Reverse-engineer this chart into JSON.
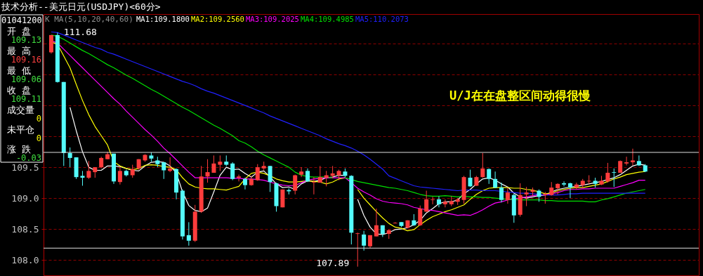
{
  "chart_data": {
    "type": "candlestick",
    "title": "技术分析--美元日元(USDJPY)<60分>",
    "subtitle": "K   MA(5,10,20,40,60)",
    "categories": [
      null,
      null,
      null,
      null,
      null,
      null,
      null,
      null,
      null,
      null,
      null,
      null,
      null,
      null,
      null,
      null,
      null,
      null,
      null,
      null,
      null,
      null,
      null,
      null,
      null,
      null,
      null,
      null,
      null,
      null,
      null,
      null,
      null,
      null,
      null,
      null,
      null,
      null,
      null,
      null,
      null,
      null,
      null,
      null,
      null,
      null,
      null,
      null,
      null,
      null,
      null,
      null,
      null,
      null,
      null,
      null,
      null,
      null,
      null,
      null,
      null,
      null,
      null,
      null,
      null,
      null,
      null,
      null,
      null,
      null,
      null,
      null,
      null,
      null,
      null,
      null,
      null,
      null,
      null,
      null,
      null,
      null,
      null,
      null,
      null,
      null,
      null,
      null,
      null,
      null,
      null,
      null,
      null,
      null,
      null,
      null
    ],
    "ohlc": [
      [
        111.36,
        111.64,
        111.34,
        111.64
      ],
      [
        111.64,
        111.68,
        110.87,
        110.88
      ],
      [
        110.88,
        110.88,
        109.52,
        109.73
      ],
      [
        109.73,
        109.82,
        109.5,
        109.65
      ],
      [
        109.66,
        109.66,
        109.31,
        109.34
      ],
      [
        109.36,
        109.44,
        109.2,
        109.33
      ],
      [
        109.33,
        109.6,
        109.31,
        109.44
      ],
      [
        109.42,
        109.5,
        109.33,
        109.5
      ],
      [
        109.5,
        109.67,
        109.48,
        109.65
      ],
      [
        109.63,
        109.75,
        109.63,
        109.71
      ],
      [
        109.72,
        109.72,
        109.23,
        109.27
      ],
      [
        109.26,
        109.5,
        109.22,
        109.44
      ],
      [
        109.44,
        109.46,
        109.35,
        109.37
      ],
      [
        109.37,
        109.54,
        109.33,
        109.47
      ],
      [
        109.48,
        109.63,
        109.46,
        109.63
      ],
      [
        109.61,
        109.71,
        109.59,
        109.7
      ],
      [
        109.69,
        109.74,
        109.59,
        109.64
      ],
      [
        109.61,
        109.67,
        109.5,
        109.55
      ],
      [
        109.58,
        109.58,
        109.31,
        109.45
      ],
      [
        109.44,
        109.66,
        109.42,
        109.48
      ],
      [
        109.47,
        109.48,
        108.98,
        109.09
      ],
      [
        109.12,
        109.14,
        108.33,
        108.38
      ],
      [
        108.4,
        108.61,
        108.23,
        108.31
      ],
      [
        108.31,
        108.89,
        108.29,
        108.78
      ],
      [
        108.78,
        109.52,
        108.76,
        109.35
      ],
      [
        109.35,
        109.63,
        109.25,
        109.42
      ],
      [
        109.41,
        109.69,
        109.41,
        109.56
      ],
      [
        109.54,
        109.69,
        109.44,
        109.59
      ],
      [
        109.59,
        109.69,
        109.52,
        109.54
      ],
      [
        109.56,
        109.58,
        109.29,
        109.31
      ],
      [
        109.33,
        109.38,
        109.27,
        109.35
      ],
      [
        109.31,
        109.33,
        109.14,
        109.21
      ],
      [
        109.21,
        109.36,
        109.2,
        109.31
      ],
      [
        109.29,
        109.55,
        109.28,
        109.5
      ],
      [
        109.48,
        109.59,
        109.45,
        109.52
      ],
      [
        109.52,
        109.52,
        109.1,
        109.26
      ],
      [
        109.24,
        109.25,
        108.78,
        108.87
      ],
      [
        108.85,
        109.14,
        108.85,
        109.14
      ],
      [
        109.13,
        109.16,
        109.06,
        109.11
      ],
      [
        109.12,
        109.38,
        109.06,
        109.37
      ],
      [
        109.38,
        109.5,
        109.34,
        109.43
      ],
      [
        109.44,
        109.48,
        109.26,
        109.27
      ],
      [
        109.25,
        109.34,
        109.06,
        109.26
      ],
      [
        109.25,
        109.52,
        109.25,
        109.34
      ],
      [
        109.33,
        109.44,
        109.19,
        109.37
      ],
      [
        109.36,
        109.52,
        109.32,
        109.4
      ],
      [
        109.37,
        109.46,
        109.29,
        109.44
      ],
      [
        109.43,
        109.48,
        109.34,
        109.36
      ],
      [
        109.36,
        109.37,
        108.25,
        108.44
      ],
      [
        108.42,
        108.44,
        107.89,
        108.43
      ],
      [
        108.41,
        108.47,
        108.15,
        108.23
      ],
      [
        108.22,
        108.4,
        108.19,
        108.4
      ],
      [
        108.38,
        108.83,
        108.38,
        108.56
      ],
      [
        108.56,
        108.56,
        108.37,
        108.42
      ],
      [
        108.42,
        108.49,
        108.34,
        108.48
      ],
      [
        108.59,
        108.61,
        108.59,
        108.6
      ],
      [
        108.61,
        108.61,
        108.53,
        108.55
      ],
      [
        108.52,
        108.64,
        108.51,
        108.64
      ],
      [
        108.64,
        108.74,
        108.55,
        108.56
      ],
      [
        108.56,
        108.88,
        108.55,
        108.83
      ],
      [
        108.78,
        109.12,
        108.78,
        108.98
      ],
      [
        108.97,
        109.02,
        108.9,
        108.98
      ],
      [
        108.98,
        109.03,
        108.85,
        108.9
      ],
      [
        108.9,
        108.98,
        108.85,
        108.94
      ],
      [
        108.9,
        109.03,
        108.87,
        108.95
      ],
      [
        108.94,
        109.0,
        108.89,
        108.98
      ],
      [
        108.97,
        109.36,
        108.91,
        109.34
      ],
      [
        109.33,
        109.46,
        109.18,
        109.19
      ],
      [
        109.2,
        109.36,
        109.2,
        109.34
      ],
      [
        109.34,
        109.73,
        109.33,
        109.48
      ],
      [
        109.47,
        109.48,
        109.23,
        109.31
      ],
      [
        109.31,
        109.43,
        109.16,
        109.17
      ],
      [
        109.17,
        109.25,
        108.93,
        108.97
      ],
      [
        108.97,
        109.17,
        108.91,
        109.09
      ],
      [
        109.05,
        109.07,
        108.6,
        108.72
      ],
      [
        108.73,
        109.24,
        108.7,
        109.05
      ],
      [
        109.06,
        109.18,
        108.87,
        109.09
      ],
      [
        109.1,
        109.17,
        109.04,
        109.13
      ],
      [
        109.12,
        109.14,
        108.94,
        109.02
      ],
      [
        109.05,
        109.1,
        108.91,
        109.07
      ],
      [
        109.05,
        109.26,
        109.04,
        109.17
      ],
      [
        109.16,
        109.24,
        109.06,
        109.23
      ],
      [
        109.24,
        109.27,
        109.19,
        109.22
      ],
      [
        109.24,
        109.25,
        109.0,
        109.17
      ],
      [
        109.17,
        109.25,
        109.14,
        109.22
      ],
      [
        109.21,
        109.31,
        109.16,
        109.28
      ],
      [
        109.27,
        109.37,
        109.23,
        109.28
      ],
      [
        109.28,
        109.33,
        109.17,
        109.23
      ],
      [
        109.22,
        109.36,
        109.21,
        109.28
      ],
      [
        109.27,
        109.57,
        109.25,
        109.41
      ],
      [
        109.42,
        109.48,
        109.18,
        109.41
      ],
      [
        109.41,
        109.61,
        109.41,
        109.6
      ],
      [
        109.56,
        109.67,
        109.53,
        109.58
      ],
      [
        109.58,
        109.8,
        109.53,
        109.61
      ],
      [
        109.6,
        109.69,
        109.52,
        109.53
      ],
      [
        109.53,
        109.55,
        109.42,
        109.43
      ]
    ],
    "colors": [
      "#ff3c3c",
      "#54fcfc",
      "#54fcfc",
      "#54fcfc",
      "#54fcfc",
      "#54fcfc",
      "#ff3c3c",
      "#ff3c3c",
      "#ff3c3c",
      "#ff3c3c",
      "#54fcfc",
      "#ff3c3c",
      "#54fcfc",
      "#ff3c3c",
      "#ff3c3c",
      "#ff3c3c",
      "#54fcfc",
      "#54fcfc",
      "#54fcfc",
      "#ff3c3c",
      "#54fcfc",
      "#54fcfc",
      "#54fcfc",
      "#ff3c3c",
      "#ff3c3c",
      "#ff3c3c",
      "#ff3c3c",
      "#ff3c3c",
      "#54fcfc",
      "#54fcfc",
      "#ff3c3c",
      "#54fcfc",
      "#ff3c3c",
      "#ff3c3c",
      "#ff3c3c",
      "#54fcfc",
      "#54fcfc",
      "#ff3c3c",
      "#54fcfc",
      "#ff3c3c",
      "#ff3c3c",
      "#54fcfc",
      "#ff3c3c",
      "#ff3c3c",
      "#ff3c3c",
      "#ff3c3c",
      "#ff3c3c",
      "#54fcfc",
      "#54fcfc",
      "#ff3c3c",
      "#54fcfc",
      "#ff3c3c",
      "#ff3c3c",
      "#54fcfc",
      "#ff3c3c",
      "#ff3c3c",
      "#54fcfc",
      "#ff3c3c",
      "#54fcfc",
      "#ff3c3c",
      "#ff3c3c",
      "#ff3c3c",
      "#54fcfc",
      "#ff3c3c",
      "#ff3c3c",
      "#ff3c3c",
      "#ff3c3c",
      "#54fcfc",
      "#ff3c3c",
      "#ff3c3c",
      "#54fcfc",
      "#54fcfc",
      "#54fcfc",
      "#ff3c3c",
      "#54fcfc",
      "#ff3c3c",
      "#ff3c3c",
      "#ff3c3c",
      "#54fcfc",
      "#ff3c3c",
      "#ff3c3c",
      "#ff3c3c",
      "#54fcfc",
      "#54fcfc",
      "#ff3c3c",
      "#ff3c3c",
      "#ff3c3c",
      "#54fcfc",
      "#ff3c3c",
      "#ff3c3c",
      "#54fcfc",
      "#ff3c3c",
      "#ff3c3c",
      "#ff3c3c",
      "#54fcfc",
      "#54fcfc"
    ],
    "series": [
      {
        "type": "line",
        "name": "MA1:109.1800",
        "color": "#ffffff",
        "values": [
          null,
          null,
          null,
          110.47,
          110.09,
          109.75,
          109.5,
          109.45,
          109.45,
          109.52,
          109.52,
          109.51,
          109.48,
          109.45,
          109.44,
          109.52,
          109.58,
          109.59,
          109.58,
          109.52,
          109.41,
          109.1,
          108.88,
          108.8,
          108.78,
          108.84,
          109.1,
          109.37,
          109.5,
          109.46,
          109.47,
          109.4,
          109.34,
          109.42,
          109.44,
          109.34,
          109.23,
          109.17,
          109.18,
          109.14,
          109.23,
          109.28,
          109.27,
          109.29,
          109.33,
          109.34,
          109.37,
          109.37,
          null,
          108.98,
          108.72,
          108.53,
          108.42,
          108.41,
          108.44,
          108.49,
          108.5,
          108.52,
          108.57,
          108.64,
          108.76,
          108.83,
          108.91,
          108.94,
          108.94,
          108.97,
          109.07,
          109.14,
          109.23,
          109.31,
          109.33,
          109.29,
          109.23,
          109.18,
          109.08,
          109.02,
          109.0,
          109.02,
          109.04,
          109.05,
          109.1,
          109.14,
          109.16,
          109.18,
          109.19,
          109.21,
          109.23,
          109.25,
          109.27,
          109.3,
          109.33,
          109.38,
          109.45,
          109.52,
          109.55,
          109.53
        ]
      },
      {
        "type": "line",
        "name": "MA2:109.2560",
        "color": "#ffff00",
        "values": [
          111.53,
          111.49,
          111.3,
          111.11,
          110.84,
          110.58,
          110.35,
          110.16,
          110.01,
          109.86,
          109.59,
          109.52,
          109.48,
          109.46,
          109.48,
          109.53,
          109.54,
          109.53,
          109.51,
          109.5,
          109.46,
          109.33,
          109.23,
          109.18,
          109.16,
          109.15,
          109.15,
          109.14,
          109.13,
          109.16,
          109.19,
          109.31,
          109.4,
          109.42,
          109.4,
          109.36,
          109.31,
          109.28,
          109.26,
          109.26,
          109.27,
          109.28,
          109.27,
          109.26,
          109.23,
          109.26,
          109.31,
          109.33,
          null,
          109.14,
          109.0,
          108.89,
          108.78,
          108.68,
          108.59,
          108.53,
          108.51,
          108.47,
          108.49,
          108.57,
          108.64,
          108.7,
          108.74,
          108.78,
          108.81,
          108.85,
          108.89,
          108.98,
          109.06,
          109.12,
          109.16,
          109.17,
          109.17,
          109.17,
          109.16,
          109.16,
          109.14,
          109.13,
          109.1,
          109.07,
          109.08,
          109.12,
          109.14,
          109.16,
          109.17,
          109.17,
          109.19,
          109.21,
          109.23,
          109.27,
          109.31,
          109.34,
          109.38,
          109.4,
          109.42,
          109.43
        ]
      },
      {
        "type": "line",
        "name": "MA3:109.2025",
        "color": "#ff00ff",
        "values": [
          111.55,
          111.51,
          111.41,
          111.31,
          111.21,
          111.11,
          111.01,
          110.91,
          110.81,
          110.71,
          110.61,
          110.52,
          110.41,
          110.31,
          110.21,
          110.11,
          110.02,
          109.92,
          109.81,
          109.72,
          109.62,
          109.52,
          109.42,
          109.33,
          109.33,
          109.33,
          109.33,
          109.33,
          109.33,
          109.32,
          109.32,
          109.31,
          109.31,
          109.3,
          109.29,
          109.26,
          109.23,
          109.21,
          109.2,
          109.2,
          109.25,
          109.29,
          109.31,
          109.32,
          109.33,
          109.33,
          109.33,
          109.33,
          109.25,
          109.16,
          109.1,
          109.05,
          108.99,
          108.95,
          108.93,
          108.92,
          108.91,
          108.89,
          108.85,
          108.83,
          108.81,
          108.8,
          108.78,
          108.76,
          108.74,
          108.72,
          108.73,
          108.72,
          108.76,
          108.81,
          108.87,
          108.92,
          108.94,
          108.97,
          108.99,
          109.0,
          109.02,
          109.04,
          109.05,
          109.05,
          109.07,
          109.09,
          109.12,
          109.14,
          109.14,
          109.15,
          109.15,
          109.16,
          109.16,
          109.16,
          109.16,
          109.19,
          109.22,
          109.25,
          109.29,
          109.29
        ]
      },
      {
        "type": "line",
        "name": "MA4:109.4985",
        "color": "#00e000",
        "values": [
          111.64,
          111.62,
          111.57,
          111.51,
          111.45,
          111.39,
          111.34,
          111.28,
          111.22,
          111.16,
          111.11,
          111.05,
          110.99,
          110.94,
          110.88,
          110.82,
          110.76,
          110.71,
          110.65,
          110.59,
          110.53,
          110.47,
          110.42,
          110.36,
          110.3,
          110.24,
          110.18,
          110.13,
          110.07,
          110.01,
          109.93,
          109.89,
          109.83,
          109.76,
          109.7,
          109.65,
          109.6,
          109.55,
          109.5,
          109.42,
          109.37,
          109.35,
          109.34,
          109.34,
          109.34,
          109.33,
          null,
          109.33,
          109.3,
          109.27,
          109.25,
          109.23,
          109.21,
          109.19,
          109.17,
          109.16,
          109.14,
          109.12,
          109.09,
          109.06,
          109.04,
          109.03,
          109.03,
          109.04,
          109.03,
          109.02,
          109.03,
          109.02,
          109.02,
          109.01,
          109.01,
          109.0,
          108.99,
          108.98,
          108.98,
          108.97,
          108.97,
          108.97,
          108.97,
          108.96,
          108.96,
          108.95,
          108.95,
          108.95,
          108.95,
          108.95,
          108.94,
          108.94,
          108.97,
          108.99,
          109.02,
          109.05,
          109.08,
          109.1,
          109.12,
          109.14
        ]
      },
      {
        "type": "line",
        "name": "MA5:110.2073",
        "color": "#2020ff",
        "values": [
          111.69,
          111.68,
          111.64,
          111.6,
          111.56,
          111.52,
          111.48,
          111.44,
          111.41,
          111.36,
          111.33,
          111.29,
          111.25,
          111.21,
          111.17,
          111.13,
          111.09,
          111.05,
          111.01,
          110.97,
          110.93,
          110.89,
          110.86,
          110.82,
          110.77,
          110.73,
          110.7,
          110.66,
          110.62,
          110.58,
          110.54,
          110.5,
          110.46,
          110.42,
          110.38,
          110.33,
          110.29,
          110.25,
          110.21,
          110.17,
          110.13,
          110.09,
          110.05,
          110.01,
          109.96,
          109.92,
          109.88,
          109.85,
          109.81,
          109.76,
          109.7,
          109.63,
          109.55,
          109.47,
          109.36,
          109.32,
          109.28,
          109.24,
          109.2,
          109.18,
          109.17,
          109.16,
          109.15,
          109.14,
          109.13,
          109.12,
          109.13,
          109.13,
          109.13,
          109.12,
          109.12,
          109.12,
          109.11,
          109.1,
          109.09,
          109.08,
          109.08,
          109.07,
          109.06,
          109.05,
          109.05,
          109.05,
          109.06,
          109.07,
          109.07,
          109.08,
          109.08,
          109.08,
          109.08,
          109.08,
          109.08,
          109.08,
          109.08,
          109.08,
          109.08,
          109.08
        ]
      }
    ],
    "ylim": [
      107.75,
      111.98
    ],
    "yticks": [
      {
        "value": 108,
        "label": "108.0"
      },
      108.5,
      {
        "value": 109,
        "label": "109.0"
      },
      109.5,
      {
        "value": 110,
        "label": null
      },
      {
        "value": 110.5,
        "label": null
      },
      {
        "value": 111,
        "label": null
      },
      {
        "value": 111.5,
        "label": null
      }
    ],
    "grid": "y",
    "legend": "top left",
    "ref_lines": [
      {
        "axis": "y",
        "value": 109.74,
        "color": "#e0e0e0"
      },
      {
        "axis": "y",
        "value": 108.19,
        "color": "#e0e0e0"
      }
    ],
    "annotations": [
      "01041200",
      "开 盘",
      "109.13",
      "最 高",
      "109.16",
      "最 低",
      "109.06",
      "收 盘",
      "109.11",
      "成交量",
      "0",
      "未平仓",
      "0",
      "涨 跌",
      "-0.03",
      "U/J在在盘整区间动得很慢",
      "111.68",
      "107.89"
    ]
  }
}
